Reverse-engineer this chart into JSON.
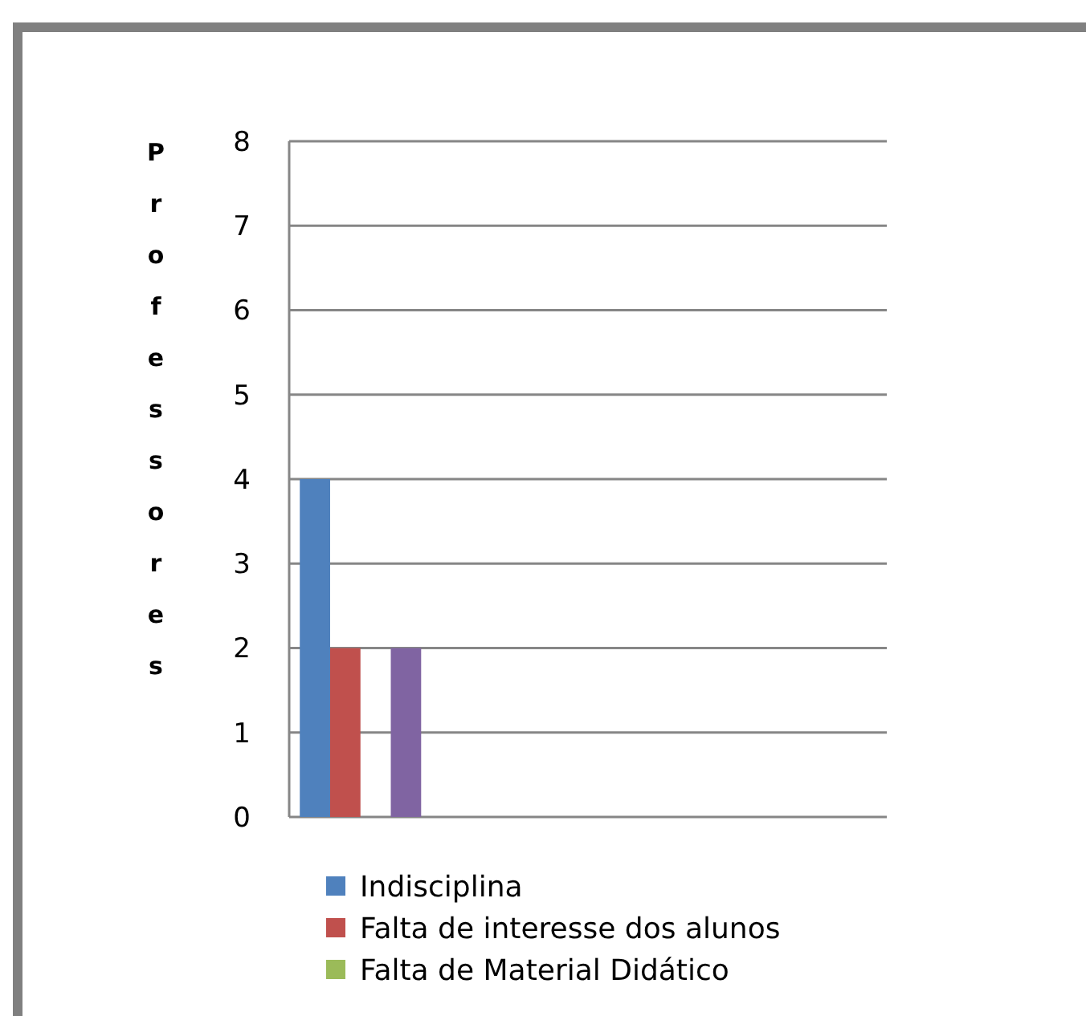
{
  "chart_data": {
    "type": "bar",
    "ylabel": "Professores",
    "categories": [
      null,
      null,
      null,
      null
    ],
    "series": [
      {
        "name": "Indisciplina",
        "color": "#4f81bd",
        "values": [
          4,
          null,
          null,
          null
        ]
      },
      {
        "name": "Falta de interesse dos alunos",
        "color": "#c0504d",
        "values": [
          2,
          null,
          null,
          null
        ]
      },
      {
        "name": "Falta de Material Didático",
        "color": "#9bbb59",
        "values": [
          0,
          null,
          null,
          null
        ]
      },
      {
        "color": "#8064a2",
        "values": [
          2,
          null,
          null,
          null
        ]
      }
    ],
    "ylim": [
      0,
      8
    ],
    "yticks": [
      0,
      1,
      2,
      3,
      4,
      5,
      6,
      7,
      8
    ],
    "grid": "y",
    "legend": "bottom"
  }
}
